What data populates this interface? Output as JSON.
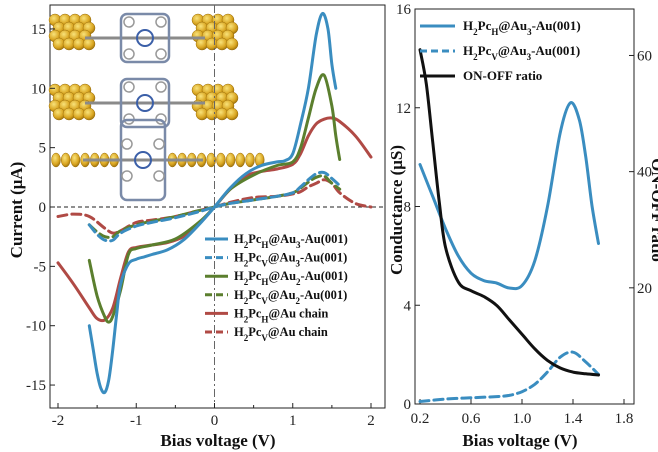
{
  "chart_data": [
    {
      "type": "line",
      "xlabel": "Bias voltage (V)",
      "ylabel": "Current (μA)",
      "xlim": [
        -2,
        2
      ],
      "ylim": [
        -16.5,
        17
      ],
      "xticks": [
        "-2",
        "-1",
        "0",
        "1",
        "2"
      ],
      "yticks": [
        "15",
        "10",
        "5",
        "0",
        "-5",
        "-10",
        "-15"
      ],
      "grid": false,
      "legend_position": "bottom-right",
      "zero_line": "dashed",
      "inset": "three molecular junction structure images (top-left)",
      "series": [
        {
          "name": "H2PcH@Au3-Au(001)",
          "color": "#3a8dc0",
          "dash": "solid",
          "points": [
            [
              -1.6,
              -10
            ],
            [
              -1.55,
              -12
            ],
            [
              -1.5,
              -14
            ],
            [
              -1.45,
              -15.3
            ],
            [
              -1.4,
              -15.6
            ],
            [
              -1.35,
              -14.5
            ],
            [
              -1.3,
              -12
            ],
            [
              -1.25,
              -9
            ],
            [
              -1.2,
              -6.5
            ],
            [
              -1.1,
              -4.8
            ],
            [
              -1.0,
              -4.4
            ],
            [
              -0.9,
              -4.2
            ],
            [
              -0.8,
              -4.0
            ],
            [
              -0.6,
              -3.6
            ],
            [
              -0.4,
              -2.8
            ],
            [
              -0.2,
              -1.5
            ],
            [
              0,
              0
            ],
            [
              0.2,
              1.6
            ],
            [
              0.4,
              2.8
            ],
            [
              0.6,
              3.5
            ],
            [
              0.8,
              3.8
            ],
            [
              0.9,
              3.9
            ],
            [
              1.0,
              4.5
            ],
            [
              1.1,
              7
            ],
            [
              1.2,
              10
            ],
            [
              1.3,
              14.5
            ],
            [
              1.38,
              16.3
            ],
            [
              1.45,
              15
            ],
            [
              1.5,
              12
            ],
            [
              1.55,
              10
            ]
          ]
        },
        {
          "name": "H2PcV@Au3-Au(001)",
          "color": "#3a8dc0",
          "dash": "dashed",
          "points": [
            [
              -1.6,
              -1.5
            ],
            [
              -1.5,
              -2.3
            ],
            [
              -1.4,
              -2.8
            ],
            [
              -1.3,
              -2.8
            ],
            [
              -1.2,
              -2.2
            ],
            [
              -1.0,
              -1.6
            ],
            [
              -0.8,
              -1.3
            ],
            [
              -0.5,
              -0.9
            ],
            [
              -0.2,
              -0.4
            ],
            [
              0,
              0
            ],
            [
              0.2,
              0.3
            ],
            [
              0.5,
              0.6
            ],
            [
              0.8,
              0.9
            ],
            [
              1.0,
              1.2
            ],
            [
              1.1,
              1.7
            ],
            [
              1.2,
              2.3
            ],
            [
              1.3,
              2.8
            ],
            [
              1.4,
              2.9
            ],
            [
              1.5,
              2.4
            ],
            [
              1.6,
              1.8
            ]
          ]
        },
        {
          "name": "H2PcH@Au2-Au(001)",
          "color": "#5b7f2e",
          "dash": "solid",
          "points": [
            [
              -1.6,
              -4.5
            ],
            [
              -1.5,
              -7.5
            ],
            [
              -1.4,
              -9.3
            ],
            [
              -1.35,
              -9.7
            ],
            [
              -1.3,
              -9.2
            ],
            [
              -1.2,
              -7
            ],
            [
              -1.1,
              -4
            ],
            [
              -1.0,
              -3.5
            ],
            [
              -0.8,
              -3.2
            ],
            [
              -0.5,
              -2.7
            ],
            [
              -0.2,
              -1.3
            ],
            [
              0,
              0
            ],
            [
              0.2,
              1.5
            ],
            [
              0.5,
              2.7
            ],
            [
              0.8,
              3.5
            ],
            [
              1.0,
              3.8
            ],
            [
              1.1,
              5
            ],
            [
              1.2,
              7.5
            ],
            [
              1.3,
              10
            ],
            [
              1.4,
              11.1
            ],
            [
              1.5,
              8.5
            ],
            [
              1.55,
              6
            ],
            [
              1.6,
              4
            ]
          ]
        },
        {
          "name": "H2PcV@Au2-Au(001)",
          "color": "#5b7f2e",
          "dash": "dashed",
          "points": [
            [
              -1.6,
              -1.5
            ],
            [
              -1.5,
              -2.1
            ],
            [
              -1.4,
              -2.5
            ],
            [
              -1.3,
              -2.5
            ],
            [
              -1.2,
              -2
            ],
            [
              -1.0,
              -1.5
            ],
            [
              -0.8,
              -1.2
            ],
            [
              -0.5,
              -0.8
            ],
            [
              -0.2,
              -0.3
            ],
            [
              0,
              0
            ],
            [
              0.2,
              0.3
            ],
            [
              0.5,
              0.6
            ],
            [
              0.8,
              0.9
            ],
            [
              1.0,
              1.2
            ],
            [
              1.1,
              1.6
            ],
            [
              1.2,
              2.1
            ],
            [
              1.3,
              2.5
            ],
            [
              1.4,
              2.6
            ],
            [
              1.5,
              2
            ],
            [
              1.6,
              1.5
            ]
          ]
        },
        {
          "name": "H2PcH@Au chain",
          "color": "#b04a45",
          "dash": "solid",
          "points": [
            [
              -2.0,
              -4.7
            ],
            [
              -1.8,
              -6.5
            ],
            [
              -1.6,
              -8.5
            ],
            [
              -1.5,
              -9.4
            ],
            [
              -1.4,
              -9.5
            ],
            [
              -1.3,
              -8.5
            ],
            [
              -1.2,
              -6
            ],
            [
              -1.1,
              -3.8
            ],
            [
              -1.0,
              -3.4
            ],
            [
              -0.8,
              -3.2
            ],
            [
              -0.6,
              -3
            ],
            [
              -0.4,
              -2.5
            ],
            [
              -0.2,
              -1.4
            ],
            [
              0,
              0
            ],
            [
              0.2,
              1.5
            ],
            [
              0.4,
              2.6
            ],
            [
              0.6,
              3
            ],
            [
              0.8,
              3.2
            ],
            [
              1.0,
              3.6
            ],
            [
              1.1,
              4.5
            ],
            [
              1.2,
              6
            ],
            [
              1.3,
              7
            ],
            [
              1.4,
              7.4
            ],
            [
              1.5,
              7.5
            ],
            [
              1.6,
              7.2
            ],
            [
              1.8,
              6
            ],
            [
              2.0,
              4.2
            ]
          ]
        },
        {
          "name": "H2PcV@Au chain",
          "color": "#b04a45",
          "dash": "dashed",
          "points": [
            [
              -2.0,
              -0.8
            ],
            [
              -1.8,
              -0.6
            ],
            [
              -1.6,
              -0.8
            ],
            [
              -1.4,
              -1.8
            ],
            [
              -1.3,
              -2.2
            ],
            [
              -1.2,
              -2
            ],
            [
              -1.0,
              -1.3
            ],
            [
              -0.8,
              -1.1
            ],
            [
              -0.5,
              -0.8
            ],
            [
              -0.2,
              -0.3
            ],
            [
              0,
              0
            ],
            [
              0.2,
              0.4
            ],
            [
              0.5,
              0.8
            ],
            [
              0.8,
              0.9
            ],
            [
              1.0,
              1.1
            ],
            [
              1.1,
              1.3
            ],
            [
              1.2,
              1.7
            ],
            [
              1.3,
              2
            ],
            [
              1.4,
              2.3
            ],
            [
              1.5,
              2
            ],
            [
              1.6,
              1.2
            ],
            [
              1.8,
              0.3
            ],
            [
              2.0,
              0
            ]
          ]
        }
      ],
      "legend_labels": [
        {
          "base": "H",
          "s1": "2",
          "mid": "Pc",
          "s2": "H",
          "rest": "@Au",
          "s3": "3",
          "tail": "-Au(001)"
        },
        {
          "base": "H",
          "s1": "2",
          "mid": "Pc",
          "s2": "V",
          "rest": "@Au",
          "s3": "3",
          "tail": "-Au(001)"
        },
        {
          "base": "H",
          "s1": "2",
          "mid": "Pc",
          "s2": "H",
          "rest": "@Au",
          "s3": "2",
          "tail": "-Au(001)"
        },
        {
          "base": "H",
          "s1": "2",
          "mid": "Pc",
          "s2": "V",
          "rest": "@Au",
          "s3": "2",
          "tail": "-Au(001)"
        },
        {
          "base": "H",
          "s1": "2",
          "mid": "Pc",
          "s2": "H",
          "rest": "@Au chain",
          "s3": "",
          "tail": ""
        },
        {
          "base": "H",
          "s1": "2",
          "mid": "Pc",
          "s2": "V",
          "rest": "@Au chain",
          "s3": "",
          "tail": ""
        }
      ]
    },
    {
      "type": "line",
      "xlabel": "Bias voltage (V)",
      "ylabel": "Conductance (μS)",
      "y2label": "ON-OFF ratio",
      "xlim": [
        0.2,
        1.8
      ],
      "ylim": [
        0,
        16
      ],
      "y2lim": [
        0,
        68
      ],
      "xticks": [
        "0.2",
        "0.6",
        "1.0",
        "1.4",
        "1.8"
      ],
      "yticks": [
        "16",
        "12",
        "8",
        "4",
        "0"
      ],
      "y2ticks": [
        "60",
        "40",
        "20"
      ],
      "grid": false,
      "legend_position": "top-right",
      "series": [
        {
          "name": "H2PcH@Au3-Au(001)",
          "color": "#3a8dc0",
          "dash": "solid",
          "axis": "left",
          "points": [
            [
              0.2,
              9.7
            ],
            [
              0.3,
              8.4
            ],
            [
              0.4,
              7.1
            ],
            [
              0.5,
              6.0
            ],
            [
              0.6,
              5.3
            ],
            [
              0.7,
              5.0
            ],
            [
              0.8,
              4.9
            ],
            [
              0.9,
              4.7
            ],
            [
              1.0,
              4.8
            ],
            [
              1.1,
              5.8
            ],
            [
              1.2,
              8.0
            ],
            [
              1.3,
              11.0
            ],
            [
              1.38,
              12.2
            ],
            [
              1.45,
              11.5
            ],
            [
              1.5,
              10
            ],
            [
              1.55,
              8
            ],
            [
              1.6,
              6.5
            ]
          ]
        },
        {
          "name": "H2PcV@Au3-Au(001)",
          "color": "#3a8dc0",
          "dash": "dashed",
          "axis": "left",
          "points": [
            [
              0.2,
              0.1
            ],
            [
              0.4,
              0.2
            ],
            [
              0.6,
              0.25
            ],
            [
              0.8,
              0.3
            ],
            [
              0.9,
              0.35
            ],
            [
              1.0,
              0.5
            ],
            [
              1.1,
              0.8
            ],
            [
              1.2,
              1.3
            ],
            [
              1.3,
              1.9
            ],
            [
              1.4,
              2.1
            ],
            [
              1.5,
              1.7
            ],
            [
              1.6,
              1.2
            ]
          ]
        },
        {
          "name": "ON-OFF ratio",
          "color": "#111111",
          "dash": "solid",
          "axis": "right",
          "points": [
            [
              0.2,
              61
            ],
            [
              0.25,
              55
            ],
            [
              0.3,
              45
            ],
            [
              0.35,
              35
            ],
            [
              0.4,
              27
            ],
            [
              0.5,
              21
            ],
            [
              0.6,
              19.5
            ],
            [
              0.7,
              18.5
            ],
            [
              0.8,
              17
            ],
            [
              0.9,
              14.5
            ],
            [
              1.0,
              12
            ],
            [
              1.1,
              9.5
            ],
            [
              1.2,
              7.5
            ],
            [
              1.3,
              6.2
            ],
            [
              1.4,
              5.5
            ],
            [
              1.5,
              5.2
            ],
            [
              1.6,
              5
            ]
          ]
        }
      ],
      "legend_labels": [
        {
          "base": "H",
          "s1": "2",
          "mid": "Pc",
          "s2": "H",
          "rest": "@Au",
          "s3": "3",
          "tail": "-Au(001)"
        },
        {
          "base": "H",
          "s1": "2",
          "mid": "Pc",
          "s2": "V",
          "rest": "@Au",
          "s3": "3",
          "tail": "-Au(001)"
        },
        {
          "base": "ON-OFF ratio",
          "s1": "",
          "mid": "",
          "s2": "",
          "rest": "",
          "s3": "",
          "tail": ""
        }
      ]
    }
  ]
}
